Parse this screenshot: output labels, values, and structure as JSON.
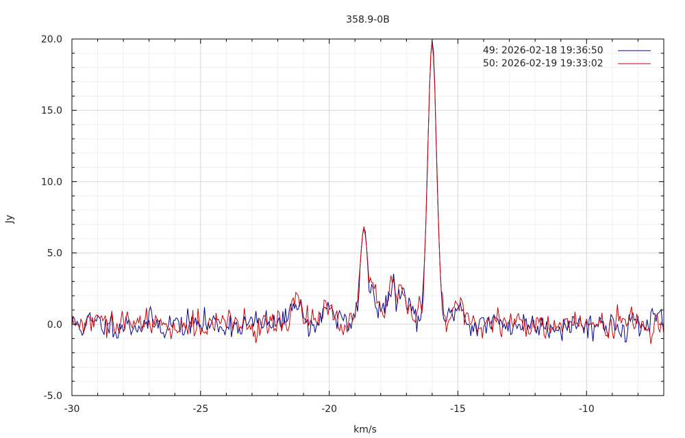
{
  "chart_data": {
    "type": "line",
    "title": "358.9-0B",
    "xlabel": "km/s",
    "ylabel": "Jy",
    "xlim": [
      -30,
      -7
    ],
    "ylim": [
      -5,
      20
    ],
    "xticks": [
      -30,
      -25,
      -20,
      -15,
      -10
    ],
    "xtick_labels": [
      "-30",
      "-25",
      "-20",
      "-15",
      "-10"
    ],
    "yticks": [
      -5,
      0,
      5,
      10,
      15,
      20
    ],
    "ytick_labels": [
      "-5.0",
      "0.0",
      "5.0",
      "10.0",
      "15.0",
      "20.0"
    ],
    "grid": true,
    "legend_position": "top-right",
    "features": [
      {
        "x": -21.3,
        "y": 2.0
      },
      {
        "x": -20.0,
        "y": 1.5
      },
      {
        "x": -18.65,
        "y": 6.7
      },
      {
        "x": -18.35,
        "y": 2.7
      },
      {
        "x": -18.0,
        "y": 1.2
      },
      {
        "x": -17.55,
        "y": 2.5
      },
      {
        "x": -17.2,
        "y": 2.4
      },
      {
        "x": -16.9,
        "y": 1.2
      },
      {
        "x": -16.5,
        "y": 0.6
      },
      {
        "x": -16.0,
        "y": 19.8
      },
      {
        "x": -15.0,
        "y": 1.5
      }
    ],
    "series": [
      {
        "name": "49:   2026-02-18 19:36:50",
        "color": "#00008b",
        "seed": 11
      },
      {
        "name": "50:   2026-02-19 19:33:02",
        "color": "#cc0000",
        "seed": 29
      }
    ]
  }
}
